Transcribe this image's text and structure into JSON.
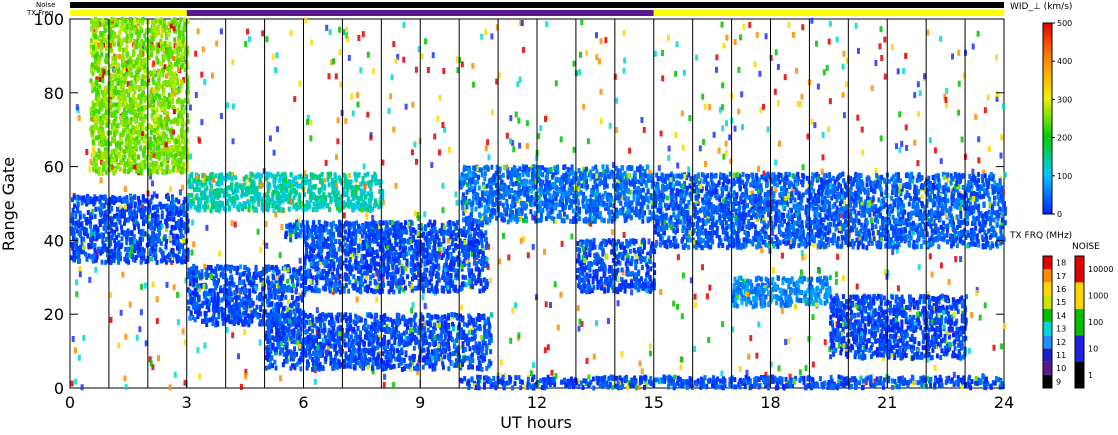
{
  "chart_data": {
    "type": "heatmap",
    "title": "",
    "xlabel": "UT hours",
    "ylabel": "Range Gate",
    "xlim": [
      0,
      24
    ],
    "ylim": [
      0,
      100
    ],
    "x_ticks": [
      "0",
      "3",
      "6",
      "9",
      "12",
      "15",
      "18",
      "21",
      "24"
    ],
    "y_ticks": [
      "0",
      "20",
      "40",
      "60",
      "80",
      "100"
    ],
    "beam_scan_lines_hours": [
      1,
      2,
      3,
      4,
      5,
      6,
      7,
      8,
      9,
      10,
      11,
      12,
      13,
      14,
      15,
      16,
      17,
      18,
      19,
      20,
      21,
      22,
      23
    ],
    "status_bars": {
      "noise_label": "Noise",
      "txfreq_label": "TX Freq",
      "txfreq_segments": [
        {
          "start": 0,
          "end": 3,
          "color": "#ffff00"
        },
        {
          "start": 3,
          "end": 15,
          "color": "#5a1a8c"
        },
        {
          "start": 15,
          "end": 24,
          "color": "#ffff00"
        }
      ]
    },
    "colorbars": {
      "wid": {
        "title": "WID_⊥ (km/s)",
        "range": [
          0,
          500
        ],
        "ticks": [
          "0",
          "100",
          "200",
          "300",
          "400",
          "500"
        ]
      },
      "txfreq": {
        "title": "TX FRQ (MHz)",
        "ticks": [
          "9",
          "10",
          "11",
          "12",
          "13",
          "14",
          "15",
          "16",
          "17",
          "18"
        ],
        "colors": [
          "#000000",
          "#5a1a8c",
          "#2020c8",
          "#1e90ff",
          "#00d8d8",
          "#00c000",
          "#c8e600",
          "#ffd700",
          "#ff8c00",
          "#e00000"
        ]
      },
      "noise": {
        "title": "NOISE",
        "ticks": [
          "1",
          "10",
          "100",
          "1000",
          "10000"
        ],
        "colors": [
          "#000000",
          "#2020e0",
          "#00c000",
          "#ffd700",
          "#e00000"
        ]
      }
    },
    "regions": [
      {
        "x": [
          0,
          3
        ],
        "y": [
          34,
          52
        ],
        "value": 20
      },
      {
        "x": [
          3,
          6
        ],
        "y": [
          17,
          33
        ],
        "value": 20
      },
      {
        "x": [
          6,
          7.5
        ],
        "y": [
          26,
          40
        ],
        "value": 25
      },
      {
        "x": [
          5.5,
          8.5
        ],
        "y": [
          40,
          45
        ],
        "value": 30
      },
      {
        "x": [
          7.5,
          10.7
        ],
        "y": [
          26,
          45
        ],
        "value": 15
      },
      {
        "x": [
          3,
          8
        ],
        "y": [
          48,
          58
        ],
        "value": 130
      },
      {
        "x": [
          5,
          10.8
        ],
        "y": [
          5,
          20
        ],
        "value": 20
      },
      {
        "x": [
          10,
          15
        ],
        "y": [
          45,
          60
        ],
        "value": 40
      },
      {
        "x": [
          13,
          15
        ],
        "y": [
          26,
          40
        ],
        "value": 20
      },
      {
        "x": [
          15,
          24
        ],
        "y": [
          38,
          58
        ],
        "value": 30
      },
      {
        "x": [
          19.5,
          23
        ],
        "y": [
          8,
          25
        ],
        "value": 15
      },
      {
        "x": [
          17,
          19.5
        ],
        "y": [
          22,
          30
        ],
        "value": 60
      },
      {
        "x": [
          10,
          24
        ],
        "y": [
          0,
          3
        ],
        "value": 20
      },
      {
        "x": [
          0.5,
          3
        ],
        "y": [
          58,
          100
        ],
        "value": 250
      }
    ]
  }
}
